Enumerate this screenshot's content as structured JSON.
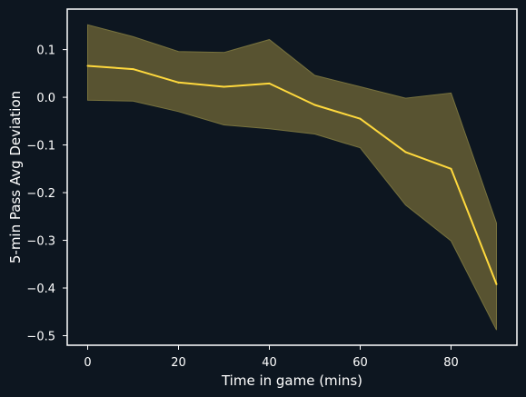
{
  "chart_data": {
    "type": "line",
    "title": "",
    "xlabel": "Time in game (mins)",
    "ylabel": "5-min Pass Avg Deviation",
    "xlim": [
      -4.5,
      94.5
    ],
    "ylim": [
      -0.52,
      0.185
    ],
    "x_ticks": [
      0,
      20,
      40,
      60,
      80
    ],
    "y_ticks": [
      0.1,
      0.0,
      -0.1,
      -0.2,
      -0.3,
      -0.4,
      -0.5
    ],
    "x_tick_labels": [
      "0",
      "20",
      "40",
      "60",
      "80"
    ],
    "y_tick_labels": [
      "0.1",
      "0.0",
      "−0.1",
      "−0.2",
      "−0.3",
      "−0.4",
      "−0.5"
    ],
    "grid": false,
    "series": [
      {
        "x": [
          0,
          10,
          20,
          30,
          40,
          50,
          60,
          70,
          80,
          90
        ],
        "y": [
          0.066,
          0.059,
          0.031,
          0.022,
          0.029,
          -0.016,
          -0.045,
          -0.115,
          -0.15,
          -0.392
        ],
        "lower": [
          -0.006,
          -0.008,
          -0.03,
          -0.058,
          -0.066,
          -0.077,
          -0.106,
          -0.226,
          -0.301,
          -0.488
        ],
        "upper": [
          0.152,
          0.127,
          0.096,
          0.094,
          0.121,
          0.046,
          0.022,
          -0.002,
          0.009,
          -0.264
        ]
      }
    ],
    "colors": {
      "background": "#0d1620",
      "line": "#ffd93d",
      "band": "#585331",
      "band_edge": "#77723e",
      "axes": "#ffffff"
    }
  }
}
